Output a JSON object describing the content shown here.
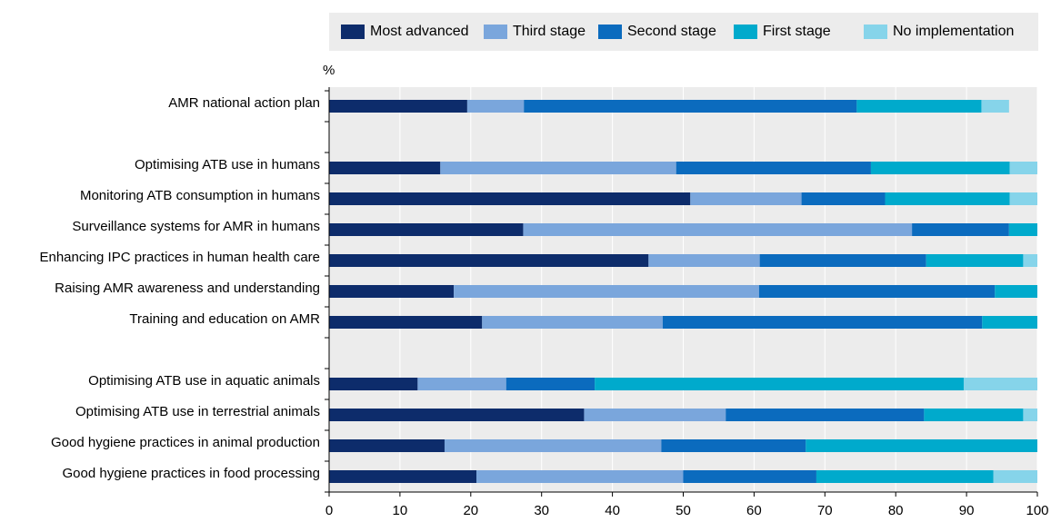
{
  "colors": {
    "plot_background": "#ececec",
    "axis": "#000000",
    "gridline": "#ffffff"
  },
  "chart_data": {
    "type": "bar",
    "orientation": "horizontal",
    "stacked": true,
    "ylabel": "%",
    "xlim": [
      0,
      100
    ],
    "xticks": [
      0,
      10,
      20,
      30,
      40,
      50,
      60,
      70,
      80,
      90,
      100
    ],
    "grid": "vertical",
    "legend_position": "top",
    "categories": [
      "AMR national action plan",
      "",
      "Optimising ATB use in humans",
      "Monitoring ATB consumption in humans",
      "Surveillance systems for AMR in humans",
      "Enhancing IPC practices in human health care",
      "Raising AMR awareness and understanding",
      "Training and education on AMR",
      "",
      "Optimising ATB use in aquatic animals",
      "Optimising ATB use in terrestrial animals",
      "Good hygiene practices in animal production",
      "Good hygiene practices in food processing"
    ],
    "series": [
      {
        "name": "Most advanced",
        "color": "#0d2c6b",
        "values": [
          19.5,
          null,
          15.7,
          51.0,
          27.4,
          45.1,
          17.6,
          21.6,
          null,
          12.5,
          36.0,
          16.3,
          20.8
        ]
      },
      {
        "name": "Third stage",
        "color": "#7aa6dc",
        "values": [
          8.0,
          null,
          33.3,
          15.7,
          54.9,
          15.7,
          43.1,
          25.5,
          null,
          12.5,
          20.0,
          30.6,
          29.2
        ]
      },
      {
        "name": "Second stage",
        "color": "#0b6bbe",
        "values": [
          47.0,
          null,
          27.5,
          11.8,
          13.7,
          23.5,
          33.3,
          45.1,
          null,
          12.5,
          28.0,
          20.4,
          18.8
        ]
      },
      {
        "name": "First stage",
        "color": "#00aacc",
        "values": [
          17.6,
          null,
          19.6,
          17.6,
          4.0,
          13.7,
          6.0,
          7.8,
          null,
          52.1,
          14.0,
          32.7,
          25.0
        ]
      },
      {
        "name": "No implementation",
        "color": "#86d4ea",
        "values": [
          3.9,
          null,
          3.9,
          3.9,
          0.0,
          2.0,
          0.0,
          0.0,
          null,
          10.4,
          2.0,
          0.0,
          6.2
        ]
      }
    ]
  }
}
